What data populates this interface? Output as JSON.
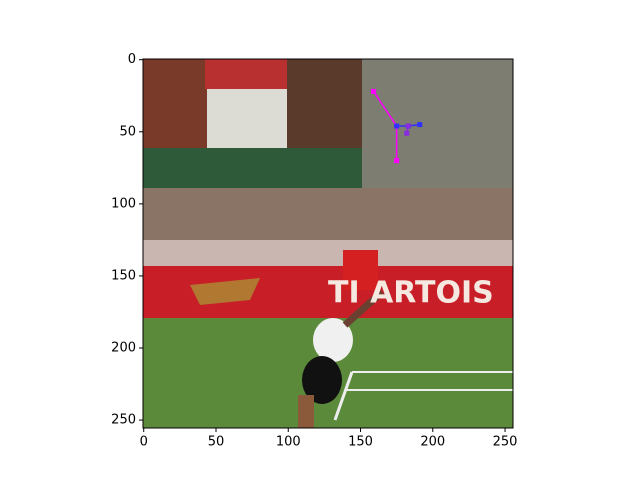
{
  "chart_data": {
    "type": "image",
    "xlim": [
      -0.5,
      255.5
    ],
    "ylim": [
      255.5,
      -0.5
    ],
    "xticks": [
      0,
      50,
      100,
      150,
      200,
      250
    ],
    "yticks": [
      0,
      50,
      100,
      150,
      200,
      250
    ],
    "banner_text": "TI ARTOIS",
    "series": [
      {
        "color": "#ff00ff",
        "x": [
          159,
          175,
          175
        ],
        "y": [
          22,
          46,
          70
        ]
      },
      {
        "color": "#3030ff",
        "x": [
          175,
          183,
          191
        ],
        "y": [
          46,
          46,
          45
        ]
      },
      {
        "color": "#8a2be2",
        "x": [
          183,
          182
        ],
        "y": [
          46,
          51
        ]
      }
    ]
  }
}
